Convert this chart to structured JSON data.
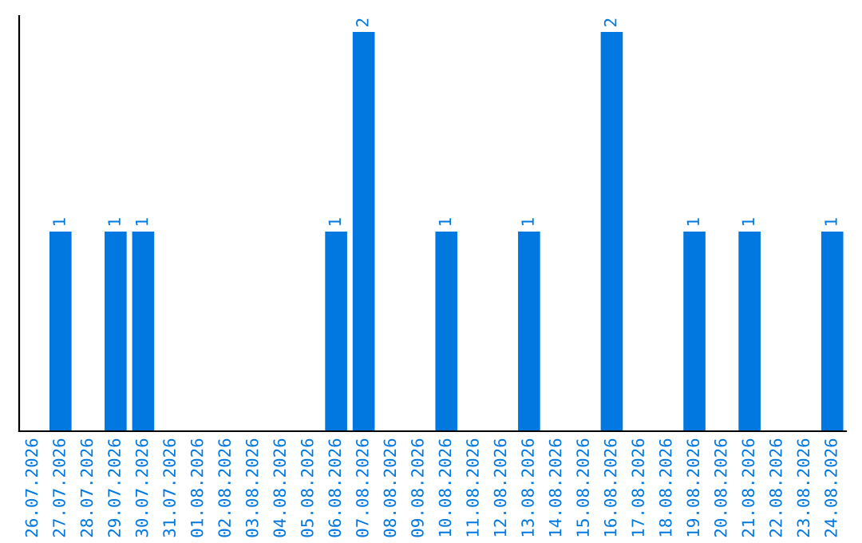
{
  "chart_data": {
    "type": "bar",
    "categories": [
      "26.07.2026",
      "27.07.2026",
      "28.07.2026",
      "29.07.2026",
      "30.07.2026",
      "31.07.2026",
      "01.08.2026",
      "02.08.2026",
      "03.08.2026",
      "04.08.2026",
      "05.08.2026",
      "06.08.2026",
      "07.08.2026",
      "08.08.2026",
      "09.08.2026",
      "10.08.2026",
      "11.08.2026",
      "12.08.2026",
      "13.08.2026",
      "14.08.2026",
      "15.08.2026",
      "16.08.2026",
      "17.08.2026",
      "18.08.2026",
      "19.08.2026",
      "20.08.2026",
      "21.08.2026",
      "22.08.2026",
      "23.08.2026",
      "24.08.2026"
    ],
    "values": [
      0,
      1,
      0,
      1,
      1,
      0,
      0,
      0,
      0,
      0,
      0,
      1,
      2,
      0,
      0,
      1,
      0,
      0,
      1,
      0,
      0,
      2,
      0,
      0,
      1,
      0,
      1,
      0,
      0,
      1
    ],
    "value_labels": [
      null,
      "1",
      null,
      "1",
      "1",
      null,
      null,
      null,
      null,
      null,
      null,
      "1",
      "2",
      null,
      null,
      "1",
      null,
      null,
      "1",
      null,
      null,
      "2",
      null,
      null,
      "1",
      null,
      "1",
      null,
      null,
      "1"
    ],
    "color": "#0078e0",
    "ylim": [
      0,
      2.08
    ],
    "tick_labels": "x",
    "grid": false,
    "legend": false
  }
}
